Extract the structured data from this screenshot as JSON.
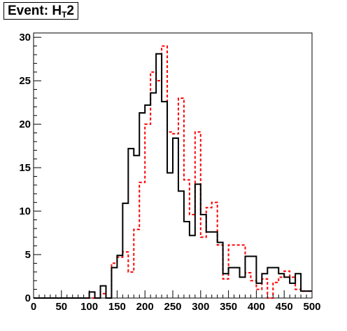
{
  "title": {
    "prefix": "Event: H",
    "subscript": "T",
    "suffix": "2"
  },
  "chart_data": {
    "type": "histogram",
    "title": "Event: H_T2",
    "xlabel": "",
    "ylabel": "",
    "xlim": [
      0,
      500
    ],
    "ylim": [
      0,
      30.5
    ],
    "bin_width": 10,
    "x_ticks": [
      0,
      50,
      100,
      150,
      200,
      250,
      300,
      350,
      400,
      450,
      500
    ],
    "y_ticks": [
      0,
      5,
      10,
      15,
      20,
      25,
      30
    ],
    "grid": false,
    "series": [
      {
        "style": "solid",
        "color": "#000000",
        "bin_lows": [
          0,
          10,
          20,
          30,
          40,
          50,
          60,
          70,
          80,
          90,
          100,
          110,
          120,
          130,
          140,
          150,
          160,
          170,
          180,
          190,
          200,
          210,
          220,
          230,
          240,
          250,
          260,
          270,
          280,
          290,
          300,
          310,
          320,
          330,
          340,
          350,
          360,
          370,
          380,
          390,
          400,
          410,
          420,
          430,
          440,
          450,
          460,
          470,
          480,
          490
        ],
        "values": [
          0,
          0,
          0,
          0,
          0,
          0,
          0,
          0,
          0,
          0,
          0.7,
          0,
          1.4,
          0,
          3.5,
          4.9,
          10.9,
          17.2,
          16.4,
          21.3,
          22.2,
          23.6,
          28.1,
          22.6,
          14.4,
          18.4,
          12.3,
          8.8,
          7.2,
          13.1,
          9.6,
          7.6,
          7.6,
          6.4,
          2.8,
          3.5,
          3.5,
          2.4,
          4.8,
          4.8,
          1.7,
          2.8,
          3.5,
          3.5,
          2.8,
          2.4,
          1.7,
          2.8,
          0.8,
          0.8
        ]
      },
      {
        "style": "dashed",
        "color": "#ff0000",
        "bin_lows": [
          0,
          10,
          20,
          30,
          40,
          50,
          60,
          70,
          80,
          90,
          100,
          110,
          120,
          130,
          140,
          150,
          160,
          170,
          180,
          190,
          200,
          210,
          220,
          230,
          240,
          250,
          260,
          270,
          280,
          290,
          300,
          310,
          320,
          330,
          340,
          350,
          360,
          370,
          380,
          390,
          400,
          410,
          420,
          430,
          440,
          450,
          460,
          470,
          480,
          490
        ],
        "values": [
          0,
          0,
          0,
          0,
          0,
          0,
          0,
          0,
          0,
          0,
          0,
          0,
          0.5,
          0,
          4.0,
          4.7,
          5.3,
          3.0,
          7.9,
          13.3,
          20.0,
          26.0,
          25.0,
          29.0,
          19.1,
          18.9,
          23.0,
          13.6,
          9.6,
          19.1,
          7.0,
          10.4,
          11.0,
          6.1,
          2.2,
          6.1,
          6.1,
          6.1,
          2.9,
          2.0,
          1.0,
          2.2,
          0,
          1.8,
          2.4,
          3.1,
          2.4,
          1.0,
          0.8,
          0.8
        ]
      }
    ]
  }
}
